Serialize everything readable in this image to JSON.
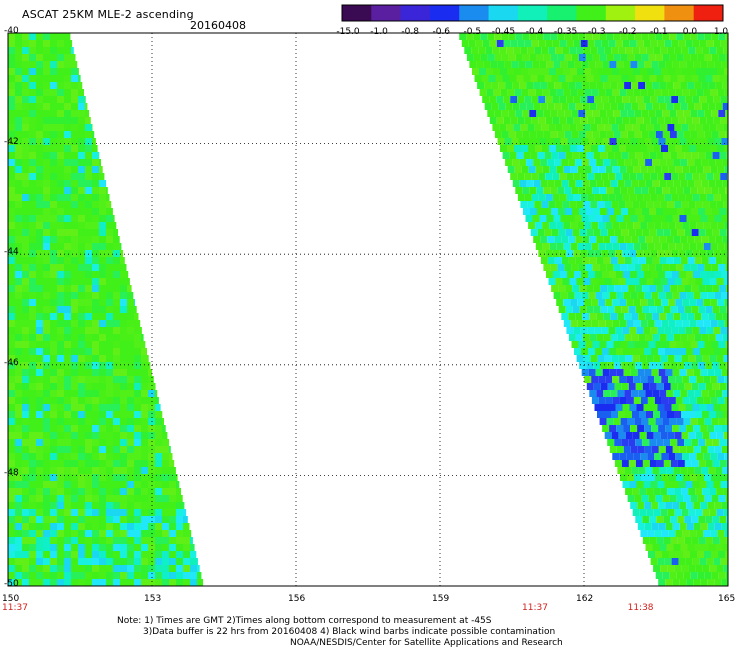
{
  "header": {
    "title": "ASCAT 25KM MLE-2 ascending",
    "date": "20160408"
  },
  "colorbar": {
    "labels": [
      "-15.0",
      "-1.0",
      "-0.8",
      "-0.6",
      "-0.5",
      "-0.45",
      "-0.4",
      "-0.35",
      "-0.3",
      "-0.2",
      "-0.1",
      "0.0",
      "1.0"
    ],
    "colors": [
      "#3a0a52",
      "#5a1fa0",
      "#3a26d8",
      "#1a2cf0",
      "#1a8cf0",
      "#19d8f0",
      "#10f0b8",
      "#18f070",
      "#40f018",
      "#a0f010",
      "#f0e010",
      "#f09010",
      "#f02010"
    ]
  },
  "map": {
    "lat_labels": [
      "-40",
      "-42",
      "-44",
      "-46",
      "-48",
      "-50"
    ],
    "lon_labels": [
      "150",
      "153",
      "156",
      "159",
      "162",
      "165"
    ],
    "lat_range": [
      -40,
      -50
    ],
    "lon_range": [
      150,
      165
    ],
    "grid": true,
    "swaths": [
      {
        "name": "left-swath",
        "lon_west": 150,
        "lon_east_top": 151.3,
        "lon_east_bottom": 154.1
      },
      {
        "name": "right-swath",
        "lon_west_top": 159.4,
        "lon_west_bottom": 163.6,
        "lon_east": 165
      }
    ]
  },
  "times": [
    {
      "label": "11:37",
      "lon": 150
    },
    {
      "label": "11:37",
      "lon": 161.0
    },
    {
      "label": "11:38",
      "lon": 163.2
    }
  ],
  "notes": {
    "line1": "Note: 1) Times are GMT 2)Times along bottom correspond to measurement at -45S",
    "line2": "3)Data buffer is 22 hrs from 20160408 4) Black wind barbs indicate possible contamination",
    "line3": "NOAA/NESDIS/Center for Satellite Applications and Research"
  }
}
